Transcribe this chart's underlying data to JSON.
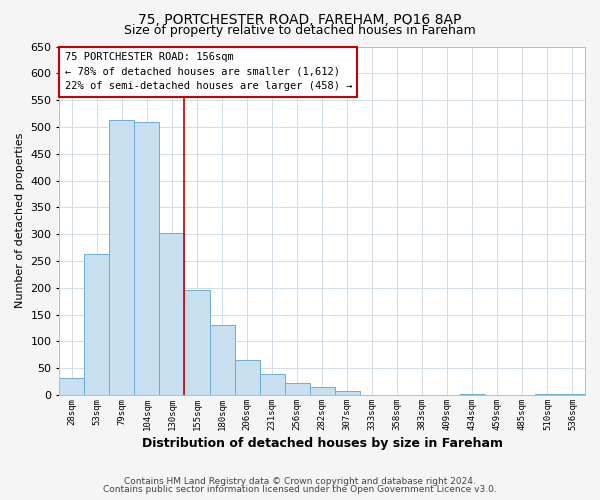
{
  "title1": "75, PORTCHESTER ROAD, FAREHAM, PO16 8AP",
  "title2": "Size of property relative to detached houses in Fareham",
  "xlabel": "Distribution of detached houses by size in Fareham",
  "ylabel": "Number of detached properties",
  "bin_labels": [
    "28sqm",
    "53sqm",
    "79sqm",
    "104sqm",
    "130sqm",
    "155sqm",
    "180sqm",
    "206sqm",
    "231sqm",
    "256sqm",
    "282sqm",
    "307sqm",
    "333sqm",
    "358sqm",
    "383sqm",
    "409sqm",
    "434sqm",
    "459sqm",
    "485sqm",
    "510sqm",
    "536sqm"
  ],
  "bar_heights": [
    32,
    263,
    512,
    509,
    303,
    196,
    131,
    65,
    40,
    23,
    15,
    8,
    0,
    0,
    0,
    0,
    2,
    0,
    0,
    2,
    2
  ],
  "bar_color": "#c8dff0",
  "bar_edge_color": "#6baed6",
  "vline_x": 5,
  "vline_color": "#cc0000",
  "box_text_line1": "75 PORTCHESTER ROAD: 156sqm",
  "box_text_line2": "← 78% of detached houses are smaller (1,612)",
  "box_text_line3": "22% of semi-detached houses are larger (458) →",
  "box_edge_color": "#cc0000",
  "box_fill": "white",
  "ylim": [
    0,
    650
  ],
  "yticks": [
    0,
    50,
    100,
    150,
    200,
    250,
    300,
    350,
    400,
    450,
    500,
    550,
    600,
    650
  ],
  "footnote1": "Contains HM Land Registry data © Crown copyright and database right 2024.",
  "footnote2": "Contains public sector information licensed under the Open Government Licence v3.0.",
  "bg_color": "#f5f5f5",
  "plot_bg_color": "#ffffff"
}
